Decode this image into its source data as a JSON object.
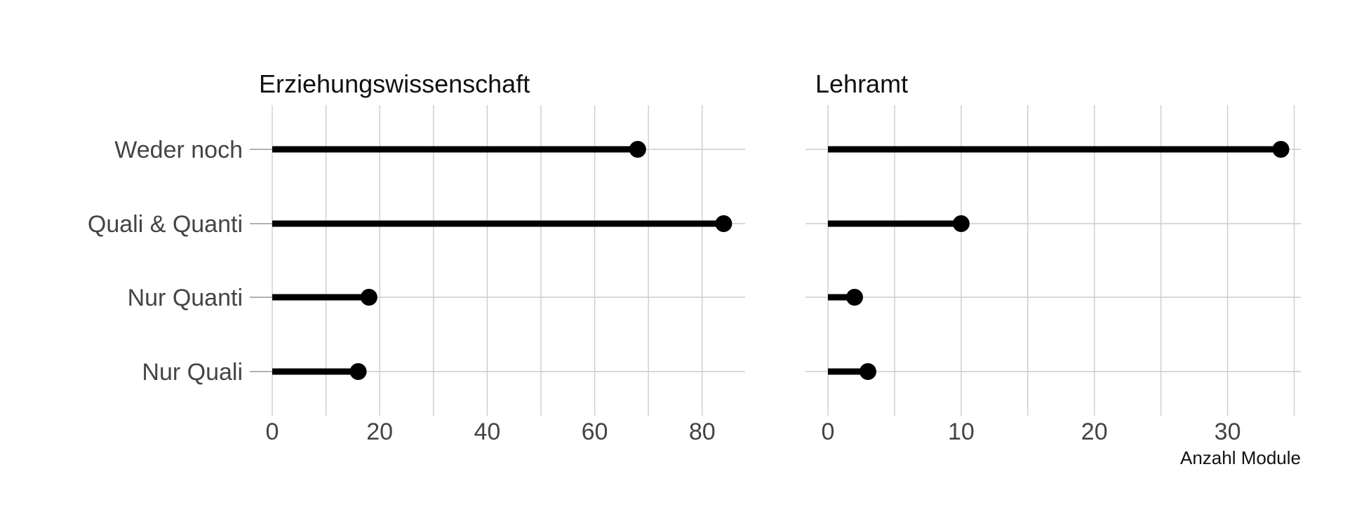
{
  "chart_data": [
    {
      "type": "lollipop",
      "title": "Erziehungswissenschaft",
      "categories": [
        "Nur Quali",
        "Nur Quanti",
        "Quali & Quanti",
        "Weder noch"
      ],
      "values": [
        16,
        18,
        84,
        68
      ],
      "xlim": [
        0,
        88
      ],
      "xticks": [
        0,
        20,
        40,
        60,
        80
      ],
      "xlabel": "",
      "grid": true
    },
    {
      "type": "lollipop",
      "title": "Lehramt",
      "categories": [
        "Nur Quali",
        "Nur Quanti",
        "Quali & Quanti",
        "Weder noch"
      ],
      "values": [
        3,
        2,
        10,
        34
      ],
      "xlim": [
        0,
        35.5
      ],
      "xticks": [
        0,
        10,
        20,
        30
      ],
      "xlabel": "Anzahl Module",
      "grid": true
    }
  ]
}
